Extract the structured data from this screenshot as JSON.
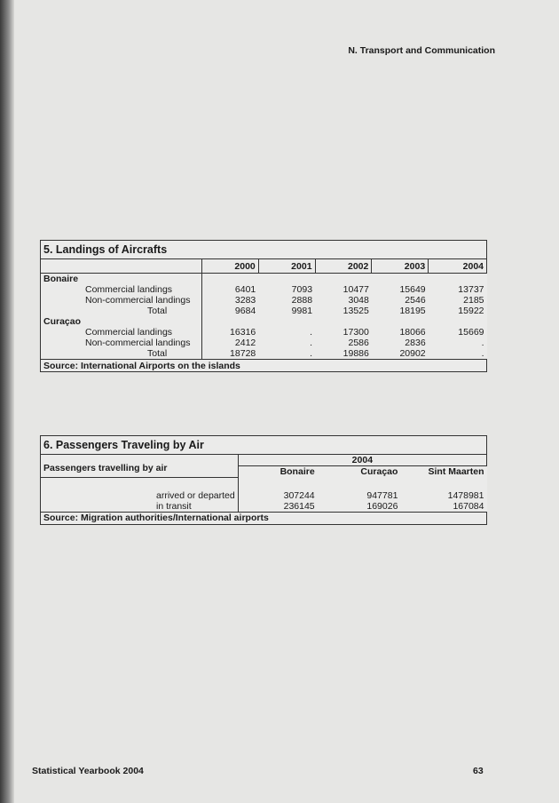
{
  "header": "N. Transport and Communication",
  "footer": {
    "left": "Statistical Yearbook 2004",
    "page": "63"
  },
  "table5": {
    "title": "5. Landings of Aircrafts",
    "years": [
      "2000",
      "2001",
      "2002",
      "2003",
      "2004"
    ],
    "groups": [
      {
        "name": "Bonaire",
        "rows": [
          {
            "label": "Commercial landings",
            "values": [
              "6401",
              "7093",
              "10477",
              "15649",
              "13737"
            ]
          },
          {
            "label": "Non-commercial landings",
            "values": [
              "3283",
              "2888",
              "3048",
              "2546",
              "2185"
            ]
          },
          {
            "label": "Total",
            "values": [
              "9684",
              "9981",
              "13525",
              "18195",
              "15922"
            ]
          }
        ]
      },
      {
        "name": "Curaçao",
        "rows": [
          {
            "label": "Commercial landings",
            "values": [
              "16316",
              ".",
              "17300",
              "18066",
              "15669"
            ]
          },
          {
            "label": "Non-commercial landings",
            "values": [
              "2412",
              ".",
              "2586",
              "2836",
              "."
            ]
          },
          {
            "label": "Total",
            "values": [
              "18728",
              ".",
              "19886",
              "20902",
              "."
            ]
          }
        ]
      }
    ],
    "source": "Source: International Airports on the islands"
  },
  "table6": {
    "title": "6. Passengers Traveling by Air",
    "year": "2004",
    "islands": [
      "Bonaire",
      "Curaçao",
      "Sint Maarten"
    ],
    "row_header": "Passengers travelling by air",
    "rows": [
      {
        "label": "arrived or departed",
        "values": [
          "307244",
          "947781",
          "1478981"
        ]
      },
      {
        "label": "in  transit",
        "values": [
          "236145",
          "169026",
          "167084"
        ]
      }
    ],
    "source": "Source: Migration authorities/International airports"
  }
}
